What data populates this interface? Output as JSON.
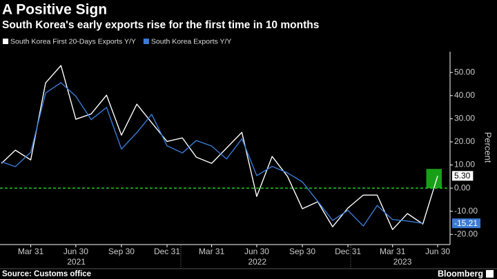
{
  "chart_data": {
    "type": "line",
    "title": "A Positive Sign",
    "subtitle": "South Korea's early exports rise for the first time in 10 months",
    "y_label": "Percent",
    "source": "Source: Customs office",
    "brand": "Bloomberg",
    "x": [
      "2021-01-31",
      "2021-02-28",
      "2021-03-31",
      "2021-04-30",
      "2021-05-31",
      "2021-06-30",
      "2021-07-31",
      "2021-08-31",
      "2021-09-30",
      "2021-10-31",
      "2021-11-30",
      "2021-12-31",
      "2022-01-31",
      "2022-02-28",
      "2022-03-31",
      "2022-04-30",
      "2022-05-31",
      "2022-06-30",
      "2022-07-31",
      "2022-08-31",
      "2022-09-30",
      "2022-10-31",
      "2022-11-30",
      "2022-12-31",
      "2023-01-31",
      "2023-02-28",
      "2023-03-31",
      "2023-04-30",
      "2023-05-31",
      "2023-06-30"
    ],
    "series": [
      {
        "name": "South Korea First 20-Days Exports Y/Y",
        "color": "#ffffff",
        "values": [
          10.7,
          16.4,
          12.2,
          45.5,
          53.0,
          29.8,
          32.1,
          40.2,
          22.9,
          36.3,
          28.3,
          20.2,
          21.7,
          13.4,
          10.7,
          17.3,
          24.1,
          -3.6,
          13.7,
          5.1,
          -8.9,
          -5.9,
          -16.7,
          -8.6,
          -3.0,
          -3.0,
          -17.9,
          -11.0,
          -15.5,
          5.3
        ],
        "value_labels": [
          null,
          null,
          null,
          null,
          null,
          null,
          null,
          null,
          null,
          null,
          null,
          null,
          null,
          null,
          null,
          null,
          null,
          null,
          null,
          null,
          null,
          null,
          null,
          null,
          null,
          null,
          null,
          null,
          null,
          "5.30"
        ]
      },
      {
        "name": "South Korea Exports Y/Y",
        "color": "#3a7bd5",
        "values": [
          11.4,
          9.3,
          15.5,
          41.1,
          45.6,
          39.7,
          29.6,
          34.9,
          16.9,
          24.0,
          31.9,
          18.3,
          15.2,
          20.6,
          18.2,
          12.6,
          21.3,
          5.4,
          9.4,
          6.6,
          2.7,
          -5.7,
          -14.0,
          -9.6,
          -16.4,
          -7.5,
          -13.6,
          -14.2,
          -15.21,
          null
        ],
        "value_labels": [
          null,
          null,
          null,
          null,
          null,
          null,
          null,
          null,
          null,
          null,
          null,
          null,
          null,
          null,
          null,
          null,
          null,
          null,
          null,
          null,
          null,
          null,
          null,
          null,
          null,
          null,
          null,
          null,
          "-15.21",
          null
        ]
      }
    ],
    "xlim": [
      "2021-01-28",
      "2023-07-25"
    ],
    "xticks": [
      {
        "value": "2021-03-31",
        "label": "Mar 31"
      },
      {
        "value": "2021-06-30",
        "label": "Jun 30"
      },
      {
        "value": "2021-09-30",
        "label": "Sep 30"
      },
      {
        "value": "2021-12-31",
        "label": "Dec 31"
      },
      {
        "value": "2022-03-31",
        "label": "Mar 31"
      },
      {
        "value": "2022-06-30",
        "label": "Jun 30"
      },
      {
        "value": "2022-09-30",
        "label": "Sep 30"
      },
      {
        "value": "2022-12-31",
        "label": "Dec 31"
      },
      {
        "value": "2023-03-31",
        "label": "Mar 31"
      },
      {
        "value": "2023-06-30",
        "label": "Jun 30"
      }
    ],
    "year_labels": [
      {
        "value": "2021-07-01",
        "label": "2021"
      },
      {
        "value": "2022-07-01",
        "label": "2022"
      },
      {
        "value": "2023-04-20",
        "label": "2023"
      }
    ],
    "ylim": [
      -24.4,
      59
    ],
    "yticks": [
      {
        "value": 50,
        "label": "50.00"
      },
      {
        "value": 40,
        "label": "40.00"
      },
      {
        "value": 30,
        "label": "30.00"
      },
      {
        "value": 20,
        "label": "20.00"
      },
      {
        "value": 10,
        "label": "10.00"
      },
      {
        "value": 0,
        "label": "0.00"
      },
      {
        "value": -10,
        "label": "-10.00"
      },
      {
        "value": -20,
        "label": "-20.00"
      }
    ],
    "reference_line": {
      "value": 0,
      "color": "#22cc22"
    },
    "highlight": {
      "x": [
        "2023-05-31",
        "2023-06-30"
      ],
      "range": [
        0,
        8.3
      ],
      "color": "#17a017"
    }
  }
}
